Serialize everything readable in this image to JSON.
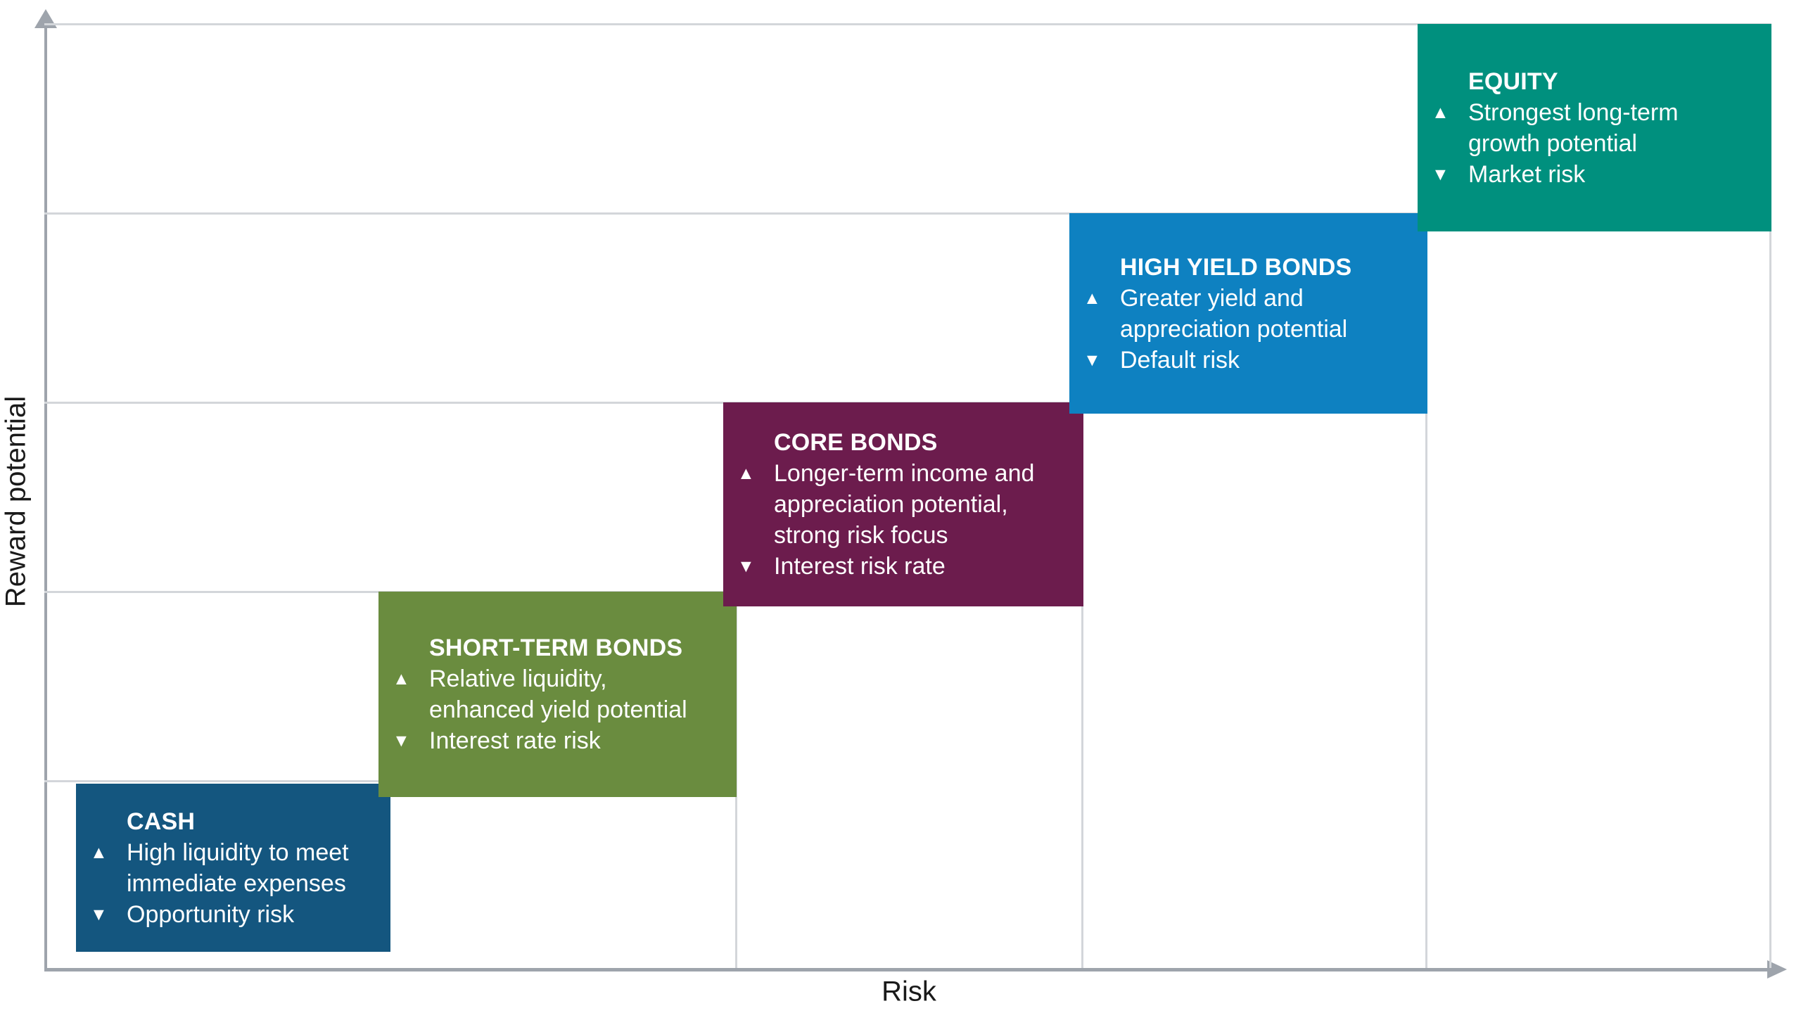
{
  "chart_data": {
    "type": "bar",
    "variant": "risk-reward staircase of 5 ascending overlapping steps",
    "title": "",
    "xlabel": "Risk",
    "ylabel": "Reward potential",
    "categories": [
      "CASH",
      "SHORT-TERM BONDS",
      "CORE BONDS",
      "HIGH YIELD BONDS",
      "EQUITY"
    ],
    "series": [
      {
        "name": "risk_rank",
        "values": [
          1,
          2,
          3,
          4,
          5
        ]
      },
      {
        "name": "reward_rank",
        "values": [
          1,
          2,
          3,
          4,
          5
        ]
      }
    ],
    "grid": "horizontal step gridlines and vertical step-edge lines, light gray",
    "legend": "none",
    "axis_arrows": [
      "up on y-axis",
      "right on x-axis"
    ],
    "annotations": [
      "CASH: ▲ High liquidity to meet immediate expenses / ▼ Opportunity risk",
      "SHORT-TERM BONDS: ▲ Relative liquidity, enhanced yield potential / ▼ Interest rate risk",
      "CORE BONDS: ▲ Longer-term income and appreciation potential, strong risk focus / ▼ Interest risk rate",
      "HIGH YIELD BONDS: ▲ Greater yield and appreciation potential / ▼ Default risk",
      "EQUITY: ▲ Strongest long-term growth potential / ▼ Market risk"
    ]
  },
  "axes": {
    "y_label": "Reward potential",
    "x_label": "Risk"
  },
  "markers": {
    "up": "▲",
    "down": "▼"
  },
  "boxes": [
    {
      "title": "CASH",
      "advantage": "High liquidity to meet immediate expenses",
      "risk": "Opportunity risk",
      "color": "#14567F",
      "risk_level": 1,
      "reward_level": 1
    },
    {
      "title": "SHORT-TERM BONDS",
      "advantage": "Relative liquidity, enhanced yield potential",
      "risk": "Interest rate risk",
      "color": "#6A8C3F",
      "risk_level": 2,
      "reward_level": 2
    },
    {
      "title": "CORE BONDS",
      "advantage": "Longer-term income and appreciation potential, strong risk focus",
      "risk": "Interest risk rate",
      "color": "#6C1C4D",
      "risk_level": 3,
      "reward_level": 3
    },
    {
      "title": "HIGH YIELD BONDS",
      "advantage": "Greater yield and appreciation potential",
      "risk": "Default risk",
      "color": "#0E81C1",
      "risk_level": 4,
      "reward_level": 4
    },
    {
      "title": "EQUITY",
      "advantage": "Strongest long-term growth potential",
      "risk": "Market risk",
      "color": "#00907E",
      "risk_level": 5,
      "reward_level": 5
    }
  ],
  "colors": {
    "axis": "#9EA4AC",
    "gridline": "#D3D6DA",
    "label_text": "#1A1A1A",
    "box_text": "#FFFFFF"
  }
}
